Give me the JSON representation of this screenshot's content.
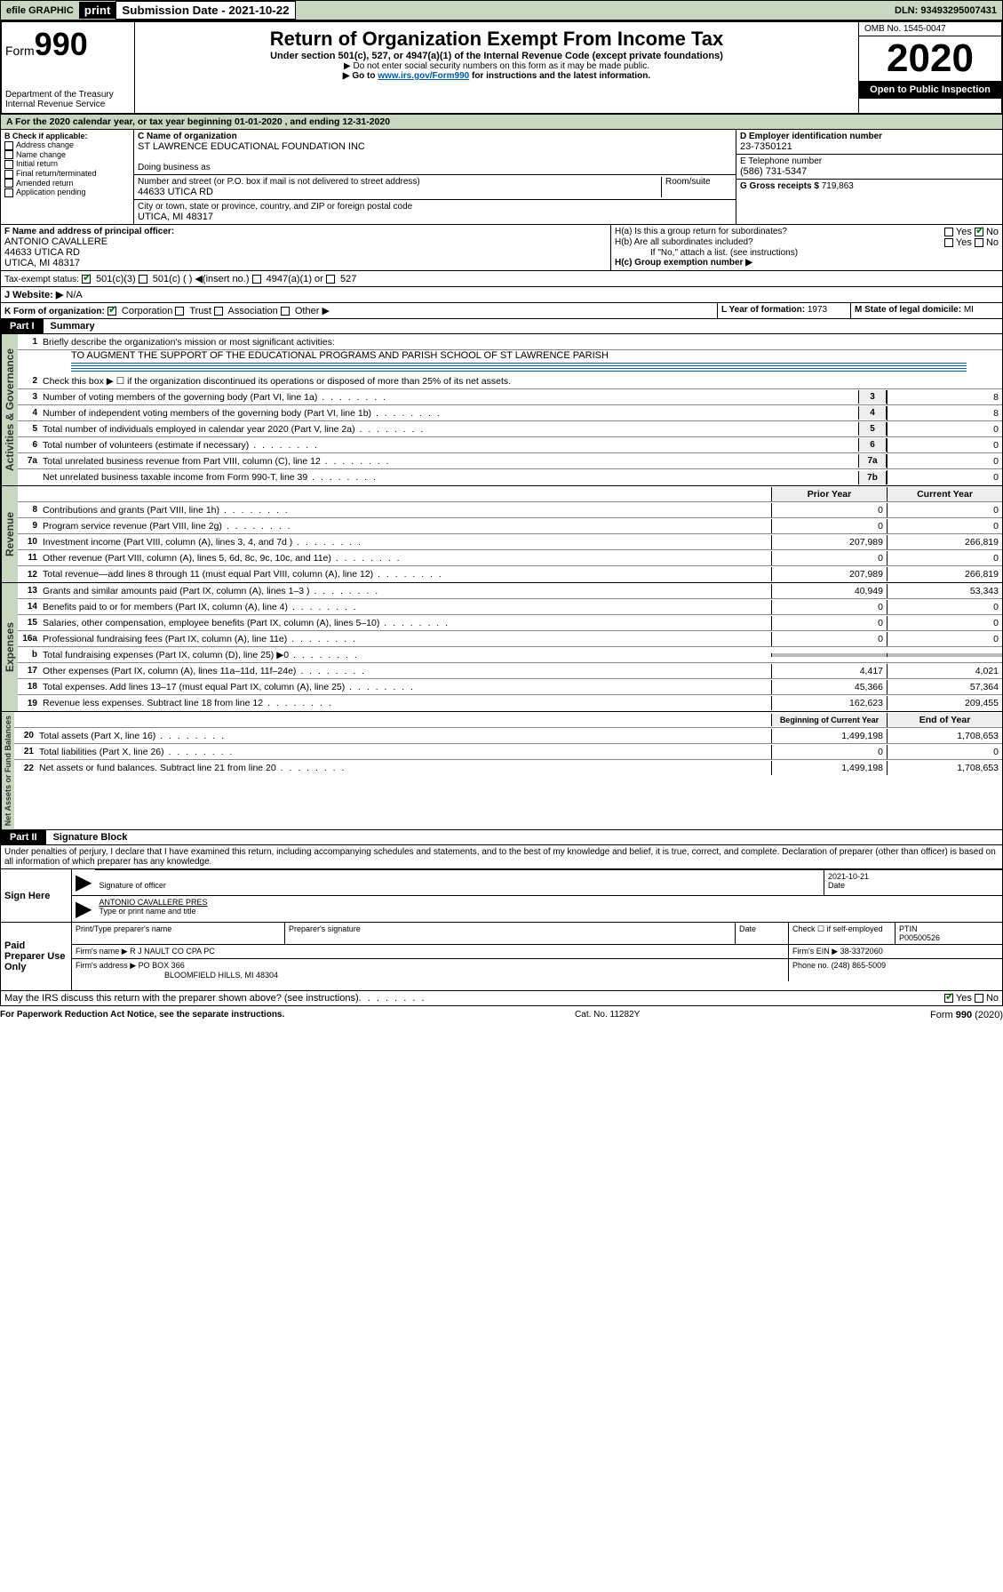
{
  "topbar": {
    "efile": "efile GRAPHIC",
    "print": "print",
    "subdate_label": "Submission Date - 2021-10-22",
    "dln": "DLN: 93493295007431"
  },
  "header": {
    "form": "Form",
    "formnum": "990",
    "dept": "Department of the Treasury\nInternal Revenue Service",
    "title": "Return of Organization Exempt From Income Tax",
    "subtitle": "Under section 501(c), 527, or 4947(a)(1) of the Internal Revenue Code (except private foundations)",
    "note1": "▶ Do not enter social security numbers on this form as it may be made public.",
    "note2a": "▶ Go to ",
    "note2link": "www.irs.gov/Form990",
    "note2b": " for instructions and the latest information.",
    "omb": "OMB No. 1545-0047",
    "year": "2020",
    "otpi": "Open to Public Inspection"
  },
  "period": "For the 2020 calendar year, or tax year beginning 01-01-2020    , and ending 12-31-2020",
  "boxB": {
    "label": "B Check if applicable:",
    "items": [
      "Address change",
      "Name change",
      "Initial return",
      "Final return/terminated",
      "Amended return",
      "Application pending"
    ]
  },
  "boxC": {
    "name_label": "C Name of organization",
    "name": "ST LAWRENCE EDUCATIONAL FOUNDATION INC",
    "dba_label": "Doing business as",
    "addr_label": "Number and street (or P.O. box if mail is not delivered to street address)",
    "room_label": "Room/suite",
    "addr": "44633 UTICA RD",
    "city_label": "City or town, state or province, country, and ZIP or foreign postal code",
    "city": "UTICA, MI  48317"
  },
  "boxD": {
    "label": "D Employer identification number",
    "val": "23-7350121"
  },
  "boxE": {
    "label": "E Telephone number",
    "val": "(586) 731-5347"
  },
  "boxG": {
    "label": "G Gross receipts $",
    "val": "719,863"
  },
  "boxF": {
    "label": "F  Name and address of principal officer:",
    "name": "ANTONIO CAVALLERE",
    "addr1": "44633 UTICA RD",
    "addr2": "UTICA, MI  48317"
  },
  "boxH": {
    "a_label": "H(a)  Is this a group return for subordinates?",
    "b_label": "H(b)  Are all subordinates included?",
    "b_note": "If \"No,\" attach a list. (see instructions)",
    "c_label": "H(c)  Group exemption number ▶"
  },
  "taxexempt": {
    "label": "Tax-exempt status:",
    "opt1": "501(c)(3)",
    "opt2": "501(c) (  ) ◀(insert no.)",
    "opt3": "4947(a)(1) or",
    "opt4": "527"
  },
  "boxJ": {
    "label": "J   Website: ▶",
    "val": "N/A"
  },
  "boxK": {
    "label": "K Form of organization:",
    "corp": "Corporation",
    "trust": "Trust",
    "assoc": "Association",
    "other": "Other ▶"
  },
  "boxL": {
    "label": "L Year of formation:",
    "val": "1973"
  },
  "boxM": {
    "label": "M State of legal domicile:",
    "val": "MI"
  },
  "part1": {
    "header": "Part I",
    "title": "Summary",
    "line1": "Briefly describe the organization's mission or most significant activities:",
    "mission": "TO AUGMENT THE SUPPORT OF THE EDUCATIONAL PROGRAMS AND PARISH SCHOOL OF ST LAWRENCE PARISH",
    "line2": "Check this box ▶ ☐  if the organization discontinued its operations or disposed of more than 25% of its net assets.",
    "rows_a": [
      {
        "n": "3",
        "d": "Number of voting members of the governing body (Part VI, line 1a)",
        "c": "3",
        "v": "8"
      },
      {
        "n": "4",
        "d": "Number of independent voting members of the governing body (Part VI, line 1b)",
        "c": "4",
        "v": "8"
      },
      {
        "n": "5",
        "d": "Total number of individuals employed in calendar year 2020 (Part V, line 2a)",
        "c": "5",
        "v": "0"
      },
      {
        "n": "6",
        "d": "Total number of volunteers (estimate if necessary)",
        "c": "6",
        "v": "0"
      },
      {
        "n": "7a",
        "d": "Total unrelated business revenue from Part VIII, column (C), line 12",
        "c": "7a",
        "v": "0"
      },
      {
        "n": "",
        "d": "Net unrelated business taxable income from Form 990-T, line 39",
        "c": "7b",
        "v": "0"
      }
    ],
    "hdr_prior": "Prior Year",
    "hdr_curr": "Current Year",
    "rows_rev": [
      {
        "n": "8",
        "d": "Contributions and grants (Part VIII, line 1h)",
        "p": "0",
        "c": "0"
      },
      {
        "n": "9",
        "d": "Program service revenue (Part VIII, line 2g)",
        "p": "0",
        "c": "0"
      },
      {
        "n": "10",
        "d": "Investment income (Part VIII, column (A), lines 3, 4, and 7d )",
        "p": "207,989",
        "c": "266,819"
      },
      {
        "n": "11",
        "d": "Other revenue (Part VIII, column (A), lines 5, 6d, 8c, 9c, 10c, and 11e)",
        "p": "0",
        "c": "0"
      },
      {
        "n": "12",
        "d": "Total revenue—add lines 8 through 11 (must equal Part VIII, column (A), line 12)",
        "p": "207,989",
        "c": "266,819"
      }
    ],
    "rows_exp": [
      {
        "n": "13",
        "d": "Grants and similar amounts paid (Part IX, column (A), lines 1–3 )",
        "p": "40,949",
        "c": "53,343"
      },
      {
        "n": "14",
        "d": "Benefits paid to or for members (Part IX, column (A), line 4)",
        "p": "0",
        "c": "0"
      },
      {
        "n": "15",
        "d": "Salaries, other compensation, employee benefits (Part IX, column (A), lines 5–10)",
        "p": "0",
        "c": "0"
      },
      {
        "n": "16a",
        "d": "Professional fundraising fees (Part IX, column (A), line 11e)",
        "p": "0",
        "c": "0"
      },
      {
        "n": "b",
        "d": "Total fundraising expenses (Part IX, column (D), line 25) ▶0",
        "p": "",
        "c": "",
        "shade": true
      },
      {
        "n": "17",
        "d": "Other expenses (Part IX, column (A), lines 11a–11d, 11f–24e)",
        "p": "4,417",
        "c": "4,021"
      },
      {
        "n": "18",
        "d": "Total expenses. Add lines 13–17 (must equal Part IX, column (A), line 25)",
        "p": "45,366",
        "c": "57,364"
      },
      {
        "n": "19",
        "d": "Revenue less expenses. Subtract line 18 from line 12",
        "p": "162,623",
        "c": "209,455"
      }
    ],
    "hdr_boy": "Beginning of Current Year",
    "hdr_eoy": "End of Year",
    "rows_net": [
      {
        "n": "20",
        "d": "Total assets (Part X, line 16)",
        "p": "1,499,198",
        "c": "1,708,653"
      },
      {
        "n": "21",
        "d": "Total liabilities (Part X, line 26)",
        "p": "0",
        "c": "0"
      },
      {
        "n": "22",
        "d": "Net assets or fund balances. Subtract line 21 from line 20",
        "p": "1,499,198",
        "c": "1,708,653"
      }
    ],
    "vlabels": {
      "ag": "Activities & Governance",
      "rev": "Revenue",
      "exp": "Expenses",
      "net": "Net Assets or Fund Balances"
    }
  },
  "part2": {
    "header": "Part II",
    "title": "Signature Block",
    "perjury": "Under penalties of perjury, I declare that I have examined this return, including accompanying schedules and statements, and to the best of my knowledge and belief, it is true, correct, and complete. Declaration of preparer (other than officer) is based on all information of which preparer has any knowledge.",
    "sign_here": "Sign Here",
    "sig_officer": "Signature of officer",
    "sig_date": "2021-10-21",
    "date_label": "Date",
    "officer_name": "ANTONIO CAVALLERE PRES",
    "type_name": "Type or print name and title",
    "paid_prep": "Paid Preparer Use Only",
    "prep_name_label": "Print/Type preparer's name",
    "prep_sig_label": "Preparer's signature",
    "check_self": "Check ☐ if self-employed",
    "ptin_label": "PTIN",
    "ptin": "P00500526",
    "firm_name_label": "Firm's name    ▶",
    "firm_name": "R J NAULT CO CPA PC",
    "firm_ein_label": "Firm's EIN ▶",
    "firm_ein": "38-3372060",
    "firm_addr_label": "Firm's address ▶",
    "firm_addr1": "PO BOX 366",
    "firm_addr2": "BLOOMFIELD HILLS, MI  48304",
    "phone_label": "Phone no.",
    "phone": "(248) 865-5009",
    "discuss": "May the IRS discuss this return with the preparer shown above? (see instructions)"
  },
  "footer": {
    "left": "For Paperwork Reduction Act Notice, see the separate instructions.",
    "mid": "Cat. No. 11282Y",
    "right": "Form 990 (2020)"
  }
}
